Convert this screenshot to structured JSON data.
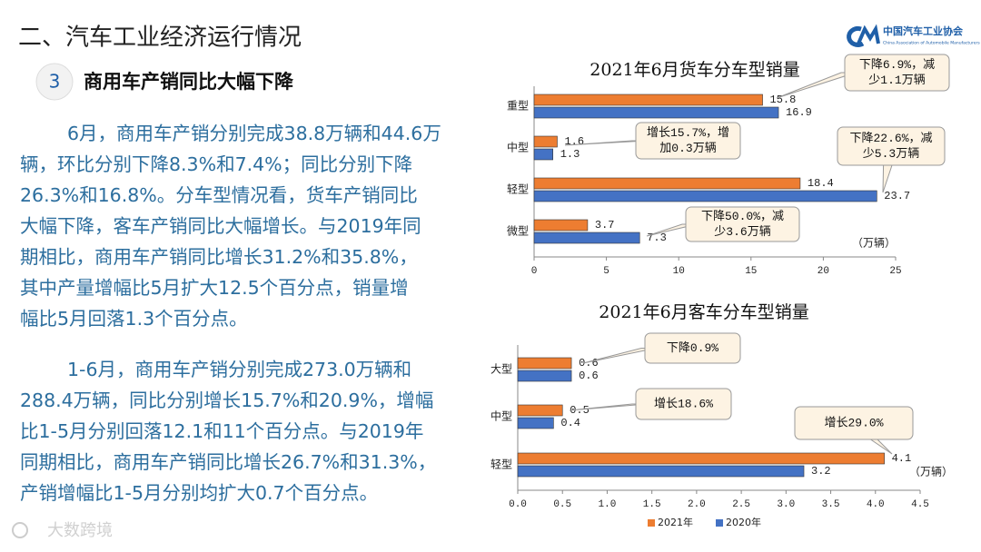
{
  "header": {
    "title": "二、汽车工业经济运行情况",
    "logo": "中国汽车工业协会",
    "logo_en": "China Association of Automobile Manufacturers"
  },
  "section": {
    "number": "3",
    "title": "商用车产销同比大幅下降"
  },
  "paragraphs": [
    [
      "6月，商用车产销分别完成38.8万辆和44.6万",
      "辆，环比分别下降8.3%和7.4%；同比分别下降",
      "26.3%和16.8%。分车型情况看，货车产销同比",
      "大幅下降，客车产销同比大幅增长。与2019年同",
      "期相比，商用车产销同比增长31.2%和35.8%，",
      "其中产量增幅比5月扩大12.5个百分点，销量增",
      "幅比5月回落1.3个百分点。"
    ],
    [
      "1-6月，商用车产销分别完成273.0万辆和",
      "288.4万辆，同比分别增长15.7%和20.9%，增幅",
      "比1-5月分别回落12.1和11个百分点。与2019年",
      "同期相比，商用车产销同比增长26.7%和31.3%，",
      "产销增幅比1-5月分别均扩大0.7个百分点。"
    ]
  ],
  "chart_data": [
    {
      "type": "hbar",
      "title": "2021年6月货车分车型销量",
      "unit": "（万辆）",
      "categories": [
        "重型",
        "中型",
        "轻型",
        "微型"
      ],
      "series": [
        {
          "color": "#ED7D31",
          "values": [
            15.8,
            1.6,
            18.4,
            3.7
          ]
        },
        {
          "color": "#4472C4",
          "values": [
            16.9,
            1.3,
            23.7,
            7.3
          ]
        }
      ],
      "xlim": [
        0,
        25
      ],
      "xticks": [
        0,
        5,
        10,
        15,
        20,
        25
      ],
      "annotations": [
        [
          "下降6.9%，减",
          "少1.1万辆"
        ],
        [
          "增长15.7%，增",
          "加0.3万辆"
        ],
        [
          "下降22.6%，减",
          "少5.3万辆"
        ],
        [
          "下降50.0%，减",
          "少3.6万辆"
        ]
      ]
    },
    {
      "type": "hbar",
      "title": "2021年6月客车分车型销量",
      "unit": "（万辆）",
      "legend": "bottom",
      "categories": [
        "大型",
        "中型",
        "轻型"
      ],
      "series": [
        {
          "name": "2021年",
          "color": "#ED7D31",
          "values": [
            0.6,
            0.5,
            4.1
          ]
        },
        {
          "name": "2020年",
          "color": "#4472C4",
          "values": [
            0.6,
            0.4,
            3.2
          ]
        }
      ],
      "xlim": [
        0,
        4.5
      ],
      "xticks": [
        {
          "value": 0,
          "label": "0.0"
        },
        0.5,
        {
          "value": 1,
          "label": "1.0"
        },
        1.5,
        {
          "value": 2,
          "label": "2.0"
        },
        2.5,
        {
          "value": 3,
          "label": "3.0"
        },
        3.5,
        {
          "value": 4,
          "label": "4.0"
        },
        4.5
      ],
      "annotations": [
        [
          "下降0.9%"
        ],
        [
          "增长18.6%"
        ],
        [
          "增长29.0%"
        ]
      ]
    }
  ],
  "watermark": "大数跨境"
}
